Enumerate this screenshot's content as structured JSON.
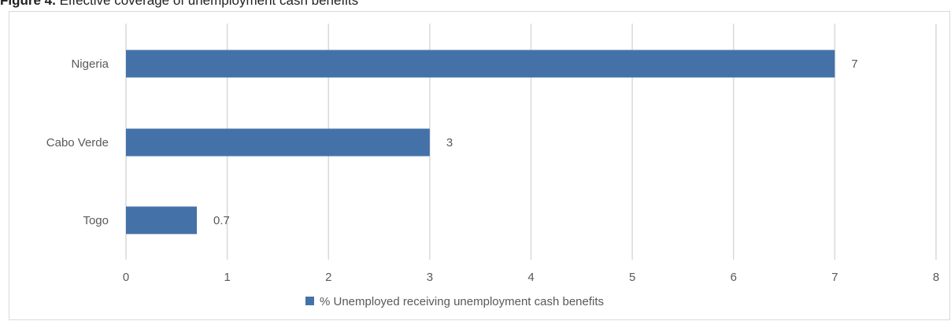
{
  "figure": {
    "label": "Figure 4.",
    "title": "Effective coverage of unemployment cash benefits"
  },
  "chart_data": {
    "type": "bar",
    "orientation": "horizontal",
    "categories": [
      "Nigeria",
      "Cabo Verde",
      "Togo"
    ],
    "series": [
      {
        "name": "% Unemployed receiving unemployment cash benefits",
        "values": [
          7,
          3,
          0.7
        ],
        "color": "#4472a8"
      }
    ],
    "data_labels": [
      "7",
      "3",
      "0.7"
    ],
    "xlim": [
      0,
      8
    ],
    "x_ticks": [
      0,
      1,
      2,
      3,
      4,
      5,
      6,
      7,
      8
    ],
    "grid": "vertical",
    "legend_position": "bottom",
    "title": "",
    "xlabel": "",
    "ylabel": ""
  }
}
